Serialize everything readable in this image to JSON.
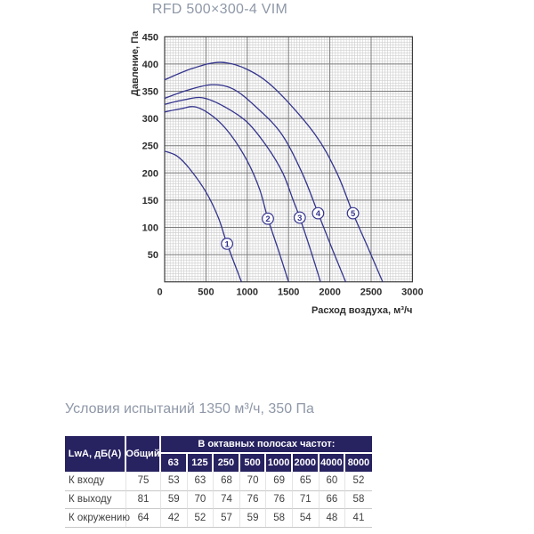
{
  "chart_data": {
    "type": "line",
    "title": "RFD 500×300-4 VIM",
    "xlabel": "Расход воздуха, м³/ч",
    "ylabel": "Давление, Па",
    "xlim": [
      0,
      3000
    ],
    "ylim": [
      0,
      450
    ],
    "x_ticks": [
      0,
      500,
      1000,
      1500,
      2000,
      2500,
      3000
    ],
    "y_ticks": [
      50,
      100,
      150,
      200,
      250,
      300,
      350,
      400,
      450
    ],
    "grid": "major and fine minor mesh",
    "legend_position": "circled numbers on curves",
    "curve_color": "#34348e",
    "series": [
      {
        "name": "1",
        "marker_at": [
          755,
          70
        ],
        "points": [
          [
            0,
            240
          ],
          [
            150,
            231
          ],
          [
            300,
            208
          ],
          [
            500,
            165
          ],
          [
            650,
            118
          ],
          [
            755,
            70
          ],
          [
            930,
            0
          ]
        ]
      },
      {
        "name": "2",
        "marker_at": [
          1250,
          116
        ],
        "points": [
          [
            0,
            312
          ],
          [
            200,
            318
          ],
          [
            380,
            321
          ],
          [
            600,
            302
          ],
          [
            800,
            270
          ],
          [
            1000,
            222
          ],
          [
            1150,
            170
          ],
          [
            1250,
            116
          ],
          [
            1380,
            57
          ],
          [
            1500,
            0
          ]
        ]
      },
      {
        "name": "3",
        "marker_at": [
          1636,
          118
        ],
        "points": [
          [
            0,
            326
          ],
          [
            230,
            334
          ],
          [
            460,
            338
          ],
          [
            720,
            322
          ],
          [
            1000,
            293
          ],
          [
            1240,
            248
          ],
          [
            1430,
            200
          ],
          [
            1556,
            150
          ],
          [
            1636,
            118
          ],
          [
            1770,
            57
          ],
          [
            1887,
            0
          ]
        ]
      },
      {
        "name": "4",
        "marker_at": [
          1858,
          126
        ],
        "points": [
          [
            0,
            337
          ],
          [
            280,
            352
          ],
          [
            575,
            362
          ],
          [
            830,
            354
          ],
          [
            1100,
            322
          ],
          [
            1413,
            272
          ],
          [
            1664,
            200
          ],
          [
            1858,
            126
          ],
          [
            2030,
            60
          ],
          [
            2192,
            0
          ]
        ]
      },
      {
        "name": "5",
        "marker_at": [
          2280,
          126
        ],
        "points": [
          [
            0,
            371
          ],
          [
            340,
            392
          ],
          [
            677,
            403
          ],
          [
            1000,
            390
          ],
          [
            1340,
            354
          ],
          [
            1815,
            272
          ],
          [
            2085,
            200
          ],
          [
            2280,
            126
          ],
          [
            2470,
            60
          ],
          [
            2640,
            0
          ]
        ]
      }
    ]
  },
  "conditions_heading": "Условия испытаний 1350 м³/ч, 350 Па",
  "table": {
    "corner_header": "LwA, дБ(A)",
    "total_header": "Общий",
    "band_header": "В октавных полосах частот:",
    "frequencies": [
      "63",
      "125",
      "250",
      "500",
      "1000",
      "2000",
      "4000",
      "8000"
    ],
    "rows": [
      {
        "label": "К входу",
        "total": "75",
        "values": [
          "53",
          "63",
          "68",
          "70",
          "69",
          "65",
          "60",
          "52"
        ]
      },
      {
        "label": "К выходу",
        "total": "81",
        "values": [
          "59",
          "70",
          "74",
          "76",
          "76",
          "71",
          "66",
          "58"
        ]
      },
      {
        "label": "К окружению",
        "total": "64",
        "values": [
          "42",
          "52",
          "57",
          "59",
          "58",
          "54",
          "48",
          "41"
        ]
      }
    ],
    "header_bg": "#272260",
    "header_text_color": "#ffffff"
  }
}
